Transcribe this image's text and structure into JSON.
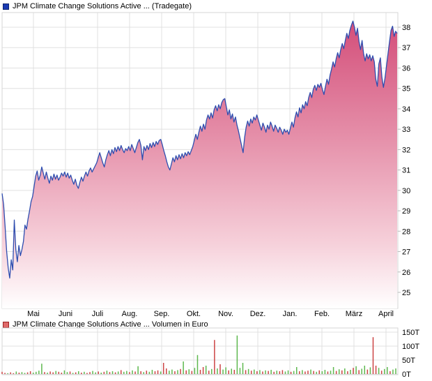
{
  "price_legend": {
    "label": "JPM Climate Change Solutions Active ... (Tradegate)",
    "swatch_fill": "#1b3bb3",
    "swatch_border": "#10256e"
  },
  "volume_legend": {
    "label": "JPM Climate Change Solutions Active ... Volumen in Euro",
    "swatch_fill": "#df6a6a",
    "swatch_border": "#992222"
  },
  "chart_data": [
    {
      "type": "area",
      "title": "JPM Climate Change Solutions Active ... (Tradegate)",
      "x_tick_labels": [
        "Mai",
        "Juni",
        "Juli",
        "Aug.",
        "Sep.",
        "Okt.",
        "Nov.",
        "Dez.",
        "Jan.",
        "Feb.",
        "März",
        "April"
      ],
      "y_tick_labels": [
        "38",
        "37",
        "36",
        "35",
        "34",
        "33",
        "32",
        "31",
        "30",
        "29",
        "28",
        "27",
        "26",
        "25"
      ],
      "ylim": [
        24.2,
        38.7
      ],
      "grid": true,
      "legend_position": "top-left",
      "line_color": "#2e4daf",
      "fill_gradient": [
        "#d24976",
        "#e58fa9",
        "#f6d0da",
        "#ffffff"
      ],
      "grid_color": "#e0e0e0",
      "border_color": "#d6d6d6",
      "values": [
        29.85,
        29.3,
        28.2,
        27.0,
        26.2,
        25.7,
        26.6,
        26.1,
        28.55,
        27.1,
        26.5,
        27.3,
        26.8,
        27.1,
        27.5,
        28.3,
        28.1,
        28.6,
        29.0,
        29.45,
        29.7,
        30.2,
        30.7,
        30.95,
        30.5,
        30.75,
        31.15,
        30.85,
        30.55,
        30.9,
        30.6,
        30.35,
        30.7,
        30.5,
        30.8,
        30.55,
        30.75,
        30.5,
        30.65,
        30.85,
        30.7,
        30.9,
        30.65,
        30.85,
        30.6,
        30.75,
        30.5,
        30.3,
        30.55,
        30.25,
        30.1,
        30.4,
        30.65,
        30.45,
        30.7,
        30.9,
        30.7,
        30.95,
        31.1,
        30.9,
        31.05,
        31.2,
        31.35,
        31.6,
        31.85,
        31.6,
        31.35,
        31.15,
        31.5,
        31.75,
        31.95,
        31.7,
        32.0,
        31.8,
        32.1,
        31.9,
        32.15,
        31.95,
        32.2,
        32.0,
        31.85,
        32.05,
        31.95,
        32.15,
        31.95,
        32.25,
        32.05,
        31.85,
        32.1,
        32.35,
        32.5,
        32.2,
        31.5,
        32.15,
        31.95,
        32.2,
        32.0,
        32.3,
        32.1,
        32.35,
        32.15,
        32.4,
        32.25,
        32.45,
        32.5,
        32.25,
        31.95,
        31.7,
        31.4,
        31.15,
        31.0,
        31.3,
        31.6,
        31.4,
        31.7,
        31.5,
        31.75,
        31.55,
        31.8,
        31.6,
        31.85,
        31.7,
        31.9,
        31.75,
        31.95,
        32.15,
        32.45,
        32.75,
        32.5,
        32.85,
        33.15,
        32.9,
        33.25,
        33.0,
        33.45,
        33.7,
        33.5,
        33.8,
        33.55,
        33.95,
        34.15,
        33.9,
        34.2,
        34.0,
        34.3,
        34.45,
        34.5,
        34.1,
        33.7,
        33.95,
        33.5,
        33.75,
        33.35,
        33.6,
        33.2,
        32.9,
        32.55,
        32.2,
        31.85,
        32.6,
        33.1,
        33.4,
        33.15,
        33.5,
        33.3,
        33.6,
        33.45,
        33.7,
        33.45,
        33.2,
        32.95,
        33.3,
        33.1,
        32.85,
        33.2,
        33.0,
        33.35,
        33.15,
        32.9,
        33.2,
        33.05,
        32.85,
        33.1,
        32.95,
        32.75,
        33.0,
        32.85,
        32.95,
        32.75,
        33.05,
        33.35,
        33.1,
        33.55,
        33.85,
        33.6,
        34.05,
        33.8,
        34.2,
        34.0,
        34.35,
        34.15,
        34.55,
        34.8,
        34.55,
        34.95,
        35.15,
        34.9,
        35.2,
        35.05,
        35.25,
        34.95,
        34.7,
        35.1,
        35.45,
        35.2,
        35.65,
        35.95,
        36.3,
        36.05,
        36.45,
        36.75,
        36.5,
        36.9,
        37.2,
        36.95,
        37.35,
        37.7,
        37.45,
        37.85,
        38.1,
        38.3,
        38.0,
        37.6,
        37.95,
        37.3,
        36.9,
        37.35,
        36.7,
        36.35,
        36.7,
        36.45,
        36.65,
        36.35,
        36.6,
        36.3,
        35.45,
        35.1,
        36.2,
        36.5,
        35.55,
        35.05,
        35.5,
        36.1,
        36.7,
        37.3,
        37.85,
        38.05,
        37.55,
        37.8,
        37.7
      ]
    },
    {
      "type": "bar",
      "title": "JPM Climate Change Solutions Active ... Volumen in Euro",
      "y_tick_labels": [
        "150T",
        "100T",
        "50T",
        "0T"
      ],
      "ylim": [
        0,
        150
      ],
      "grid": true,
      "up_color": "#5eb84e",
      "down_color": "#cc4444",
      "values": [
        [
          8,
          "r"
        ],
        [
          4,
          "r"
        ],
        [
          3,
          "g"
        ],
        [
          6,
          "r"
        ],
        [
          3,
          "r"
        ],
        [
          9,
          "g"
        ],
        [
          5,
          "r"
        ],
        [
          7,
          "g"
        ],
        [
          4,
          "g"
        ],
        [
          6,
          "r"
        ],
        [
          10,
          "r"
        ],
        [
          5,
          "g"
        ],
        [
          8,
          "g"
        ],
        [
          12,
          "g"
        ],
        [
          37,
          "g"
        ],
        [
          7,
          "r"
        ],
        [
          5,
          "g"
        ],
        [
          9,
          "r"
        ],
        [
          6,
          "r"
        ],
        [
          11,
          "g"
        ],
        [
          8,
          "r"
        ],
        [
          5,
          "r"
        ],
        [
          13,
          "g"
        ],
        [
          7,
          "g"
        ],
        [
          9,
          "r"
        ],
        [
          4,
          "g"
        ],
        [
          6,
          "r"
        ],
        [
          10,
          "g"
        ],
        [
          5,
          "r"
        ],
        [
          8,
          "g"
        ],
        [
          4,
          "r"
        ],
        [
          7,
          "r"
        ],
        [
          11,
          "g"
        ],
        [
          6,
          "g"
        ],
        [
          9,
          "r"
        ],
        [
          5,
          "g"
        ],
        [
          8,
          "r"
        ],
        [
          12,
          "g"
        ],
        [
          7,
          "r"
        ],
        [
          10,
          "g"
        ],
        [
          6,
          "r"
        ],
        [
          9,
          "g"
        ],
        [
          14,
          "r"
        ],
        [
          8,
          "g"
        ],
        [
          11,
          "g"
        ],
        [
          7,
          "r"
        ],
        [
          13,
          "g"
        ],
        [
          9,
          "r"
        ],
        [
          28,
          "g"
        ],
        [
          10,
          "r"
        ],
        [
          7,
          "g"
        ],
        [
          12,
          "r"
        ],
        [
          8,
          "g"
        ],
        [
          15,
          "g"
        ],
        [
          10,
          "r"
        ],
        [
          13,
          "r"
        ],
        [
          9,
          "g"
        ],
        [
          40,
          "r"
        ],
        [
          20,
          "r"
        ],
        [
          12,
          "g"
        ],
        [
          16,
          "g"
        ],
        [
          10,
          "r"
        ],
        [
          14,
          "g"
        ],
        [
          18,
          "r"
        ],
        [
          45,
          "g"
        ],
        [
          13,
          "r"
        ],
        [
          17,
          "g"
        ],
        [
          11,
          "r"
        ],
        [
          22,
          "g"
        ],
        [
          68,
          "g"
        ],
        [
          15,
          "r"
        ],
        [
          25,
          "r"
        ],
        [
          30,
          "g"
        ],
        [
          12,
          "r"
        ],
        [
          18,
          "g"
        ],
        [
          122,
          "r"
        ],
        [
          20,
          "g"
        ],
        [
          35,
          "r"
        ],
        [
          16,
          "g"
        ],
        [
          24,
          "g"
        ],
        [
          13,
          "r"
        ],
        [
          19,
          "g"
        ],
        [
          15,
          "r"
        ],
        [
          138,
          "g"
        ],
        [
          22,
          "g"
        ],
        [
          40,
          "g"
        ],
        [
          14,
          "r"
        ],
        [
          18,
          "g"
        ],
        [
          12,
          "r"
        ],
        [
          16,
          "g"
        ],
        [
          10,
          "r"
        ],
        [
          14,
          "g"
        ],
        [
          9,
          "r"
        ],
        [
          13,
          "g"
        ],
        [
          11,
          "r"
        ],
        [
          15,
          "g"
        ],
        [
          8,
          "r"
        ],
        [
          12,
          "g"
        ],
        [
          10,
          "r"
        ],
        [
          14,
          "r"
        ],
        [
          9,
          "g"
        ],
        [
          13,
          "g"
        ],
        [
          8,
          "r"
        ],
        [
          11,
          "g"
        ],
        [
          25,
          "g"
        ],
        [
          10,
          "r"
        ],
        [
          14,
          "g"
        ],
        [
          9,
          "r"
        ],
        [
          12,
          "r"
        ],
        [
          16,
          "g"
        ],
        [
          11,
          "r"
        ],
        [
          8,
          "g"
        ],
        [
          13,
          "r"
        ],
        [
          10,
          "g"
        ],
        [
          15,
          "g"
        ],
        [
          9,
          "r"
        ],
        [
          12,
          "g"
        ],
        [
          25,
          "g"
        ],
        [
          11,
          "r"
        ],
        [
          17,
          "g"
        ],
        [
          13,
          "r"
        ],
        [
          20,
          "g"
        ],
        [
          10,
          "r"
        ],
        [
          15,
          "g"
        ],
        [
          22,
          "r"
        ],
        [
          28,
          "g"
        ],
        [
          14,
          "r"
        ],
        [
          19,
          "g"
        ],
        [
          30,
          "g"
        ],
        [
          16,
          "r"
        ],
        [
          24,
          "g"
        ],
        [
          132,
          "r"
        ],
        [
          30,
          "r"
        ],
        [
          22,
          "g"
        ],
        [
          12,
          "r"
        ],
        [
          18,
          "g"
        ],
        [
          25,
          "g"
        ],
        [
          10,
          "r"
        ],
        [
          16,
          "g"
        ],
        [
          20,
          "g"
        ]
      ]
    }
  ]
}
